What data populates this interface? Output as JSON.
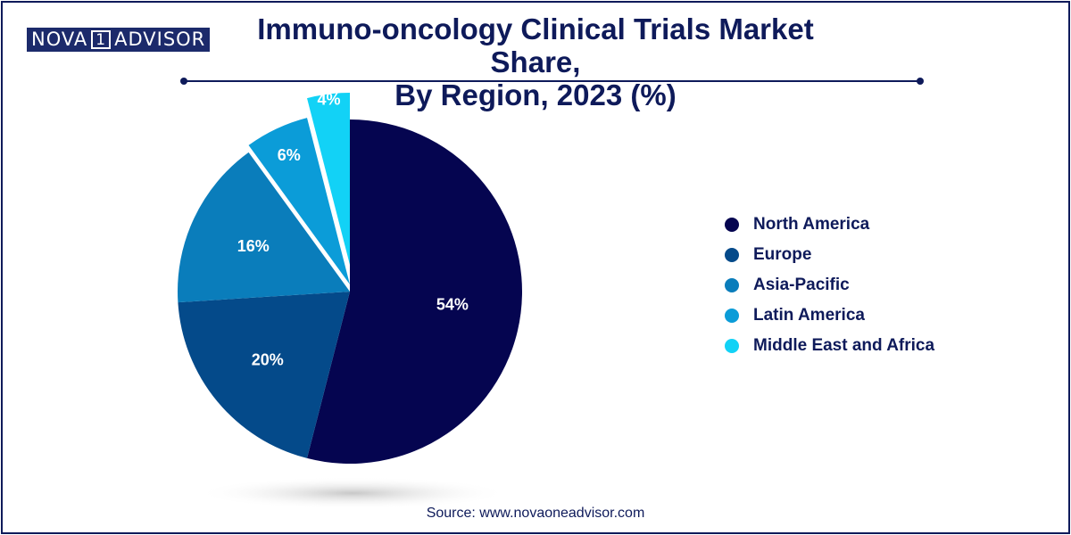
{
  "logo": {
    "part1": "NOVA",
    "part2": "1",
    "part3": "ADVISOR"
  },
  "title_line1": "Immuno-oncology Clinical Trials Market Share,",
  "title_line2": "By Region, 2023 (%)",
  "source": "Source: www.novaoneadvisor.com",
  "chart_data": {
    "type": "pie",
    "title": "Immuno-oncology Clinical Trials Market Share, By Region, 2023 (%)",
    "legend_position": "right",
    "slices": [
      {
        "label": "North America",
        "value": 54,
        "value_label": "54%",
        "color": "#050550"
      },
      {
        "label": "Europe",
        "value": 20,
        "value_label": "20%",
        "color": "#044a8a"
      },
      {
        "label": "Asia-Pacific",
        "value": 16,
        "value_label": "16%",
        "color": "#0a7dbb"
      },
      {
        "label": "Latin America",
        "value": 6,
        "value_label": "6%",
        "color": "#0b9cd8"
      },
      {
        "label": "Middle East and Africa",
        "value": 4,
        "value_label": "4%",
        "color": "#12d2f6"
      }
    ]
  }
}
